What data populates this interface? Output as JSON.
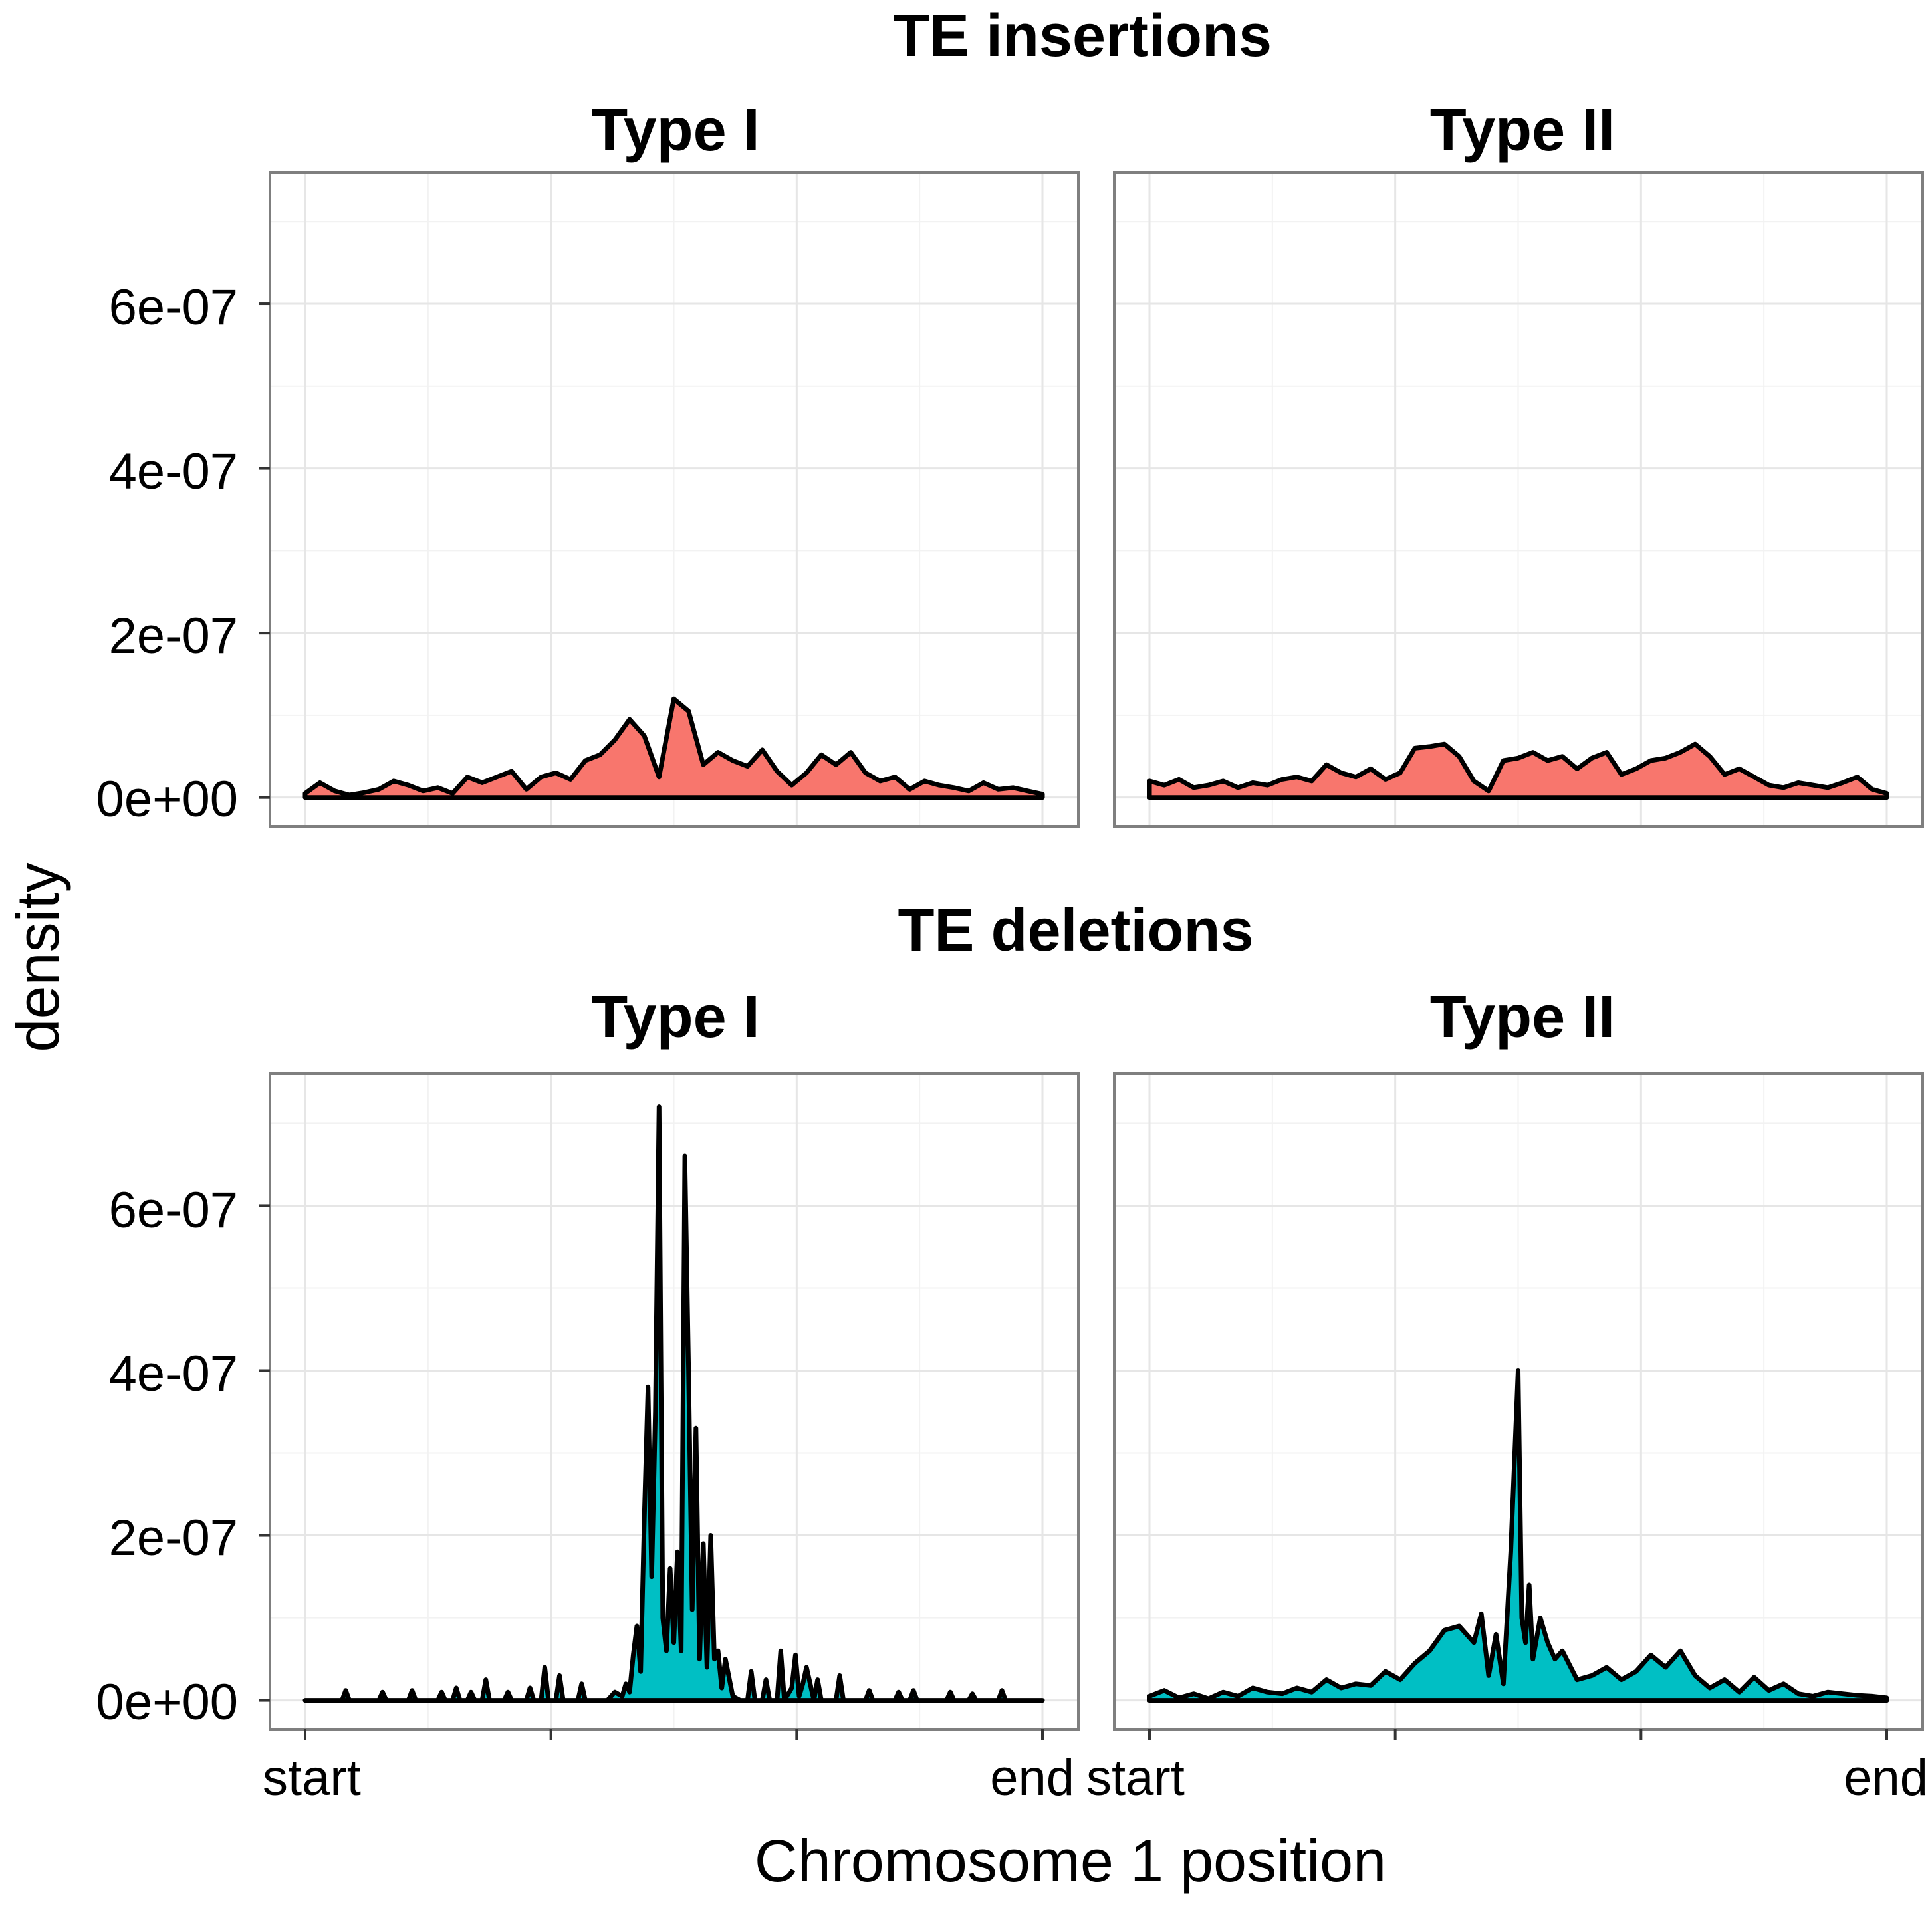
{
  "figure": {
    "ylabel": "density",
    "xlabel": "Chromosome 1 position",
    "y_tick_labels": [
      "0e+00",
      "2e-07",
      "4e-07",
      "6e-07"
    ],
    "x_tick_labels": [
      "start",
      "",
      "",
      "end"
    ]
  },
  "sections": [
    {
      "title": "TE insertions"
    },
    {
      "title": "TE deletions"
    }
  ],
  "colors": {
    "insertions_fill": "#F8766D",
    "deletions_fill": "#00BFC4",
    "line": "#000000",
    "grid": "#E6E6E6",
    "border": "#7F7F7F"
  },
  "chart_data": [
    {
      "type": "area",
      "section": "TE insertions",
      "facet": "Type I",
      "ylim": [
        -3.5e-08,
        7.6e-07
      ],
      "x_range": [
        "start",
        "end"
      ],
      "x": [
        0,
        0.02,
        0.04,
        0.06,
        0.08,
        0.1,
        0.12,
        0.14,
        0.16,
        0.18,
        0.2,
        0.22,
        0.24,
        0.26,
        0.28,
        0.3,
        0.32,
        0.34,
        0.36,
        0.38,
        0.4,
        0.42,
        0.44,
        0.46,
        0.48,
        0.5,
        0.52,
        0.54,
        0.56,
        0.58,
        0.6,
        0.62,
        0.64,
        0.66,
        0.68,
        0.7,
        0.72,
        0.74,
        0.76,
        0.78,
        0.8,
        0.82,
        0.84,
        0.86,
        0.88,
        0.9,
        0.92,
        0.94,
        0.96,
        0.98,
        1.0
      ],
      "y": [
        5e-09,
        1.8e-08,
        8e-09,
        3e-09,
        6e-09,
        1e-08,
        2e-08,
        1.5e-08,
        8e-09,
        1.2e-08,
        5e-09,
        2.5e-08,
        1.8e-08,
        2.5e-08,
        3.2e-08,
        1e-08,
        2.5e-08,
        3e-08,
        2.2e-08,
        4.5e-08,
        5.2e-08,
        7e-08,
        9.5e-08,
        7.5e-08,
        2.5e-08,
        1.2e-07,
        1.05e-07,
        4e-08,
        5.5e-08,
        4.5e-08,
        3.8e-08,
        5.8e-08,
        3.2e-08,
        1.5e-08,
        3e-08,
        5.2e-08,
        4e-08,
        5.5e-08,
        3e-08,
        2e-08,
        2.5e-08,
        1e-08,
        2e-08,
        1.5e-08,
        1.2e-08,
        8e-09,
        1.8e-08,
        1e-08,
        1.2e-08,
        8e-09,
        4e-09
      ]
    },
    {
      "type": "area",
      "section": "TE insertions",
      "facet": "Type II",
      "ylim": [
        -3.5e-08,
        7.6e-07
      ],
      "x_range": [
        "start",
        "end"
      ],
      "x": [
        0,
        0.02,
        0.04,
        0.06,
        0.08,
        0.1,
        0.12,
        0.14,
        0.16,
        0.18,
        0.2,
        0.22,
        0.24,
        0.26,
        0.28,
        0.3,
        0.32,
        0.34,
        0.36,
        0.38,
        0.4,
        0.42,
        0.44,
        0.46,
        0.48,
        0.5,
        0.52,
        0.54,
        0.56,
        0.58,
        0.6,
        0.62,
        0.64,
        0.66,
        0.68,
        0.7,
        0.72,
        0.74,
        0.76,
        0.78,
        0.8,
        0.82,
        0.84,
        0.86,
        0.88,
        0.9,
        0.92,
        0.94,
        0.96,
        0.98,
        1.0
      ],
      "y": [
        2e-08,
        1.5e-08,
        2.2e-08,
        1.2e-08,
        1.5e-08,
        2e-08,
        1.2e-08,
        1.8e-08,
        1.5e-08,
        2.2e-08,
        2.5e-08,
        2e-08,
        4e-08,
        3e-08,
        2.5e-08,
        3.5e-08,
        2.2e-08,
        3e-08,
        6e-08,
        6.2e-08,
        6.5e-08,
        5e-08,
        2e-08,
        8e-09,
        4.5e-08,
        4.8e-08,
        5.5e-08,
        4.5e-08,
        5e-08,
        3.5e-08,
        4.8e-08,
        5.5e-08,
        2.8e-08,
        3.5e-08,
        4.5e-08,
        4.8e-08,
        5.5e-08,
        6.5e-08,
        5e-08,
        2.8e-08,
        3.5e-08,
        2.5e-08,
        1.5e-08,
        1.2e-08,
        1.8e-08,
        1.5e-08,
        1.2e-08,
        1.8e-08,
        2.5e-08,
        1e-08,
        5e-09
      ]
    },
    {
      "type": "area",
      "section": "TE deletions",
      "facet": "Type I",
      "ylim": [
        -3.5e-08,
        7.6e-07
      ],
      "x_range": [
        "start",
        "end"
      ],
      "x": [
        0,
        0.05,
        0.055,
        0.06,
        0.1,
        0.105,
        0.11,
        0.14,
        0.145,
        0.15,
        0.18,
        0.185,
        0.19,
        0.2,
        0.205,
        0.21,
        0.22,
        0.225,
        0.23,
        0.24,
        0.245,
        0.25,
        0.27,
        0.275,
        0.28,
        0.3,
        0.305,
        0.31,
        0.32,
        0.325,
        0.33,
        0.34,
        0.345,
        0.35,
        0.37,
        0.375,
        0.38,
        0.41,
        0.42,
        0.43,
        0.435,
        0.44,
        0.445,
        0.45,
        0.455,
        0.46,
        0.465,
        0.47,
        0.475,
        0.48,
        0.485,
        0.49,
        0.495,
        0.5,
        0.505,
        0.51,
        0.515,
        0.52,
        0.525,
        0.53,
        0.535,
        0.54,
        0.545,
        0.55,
        0.555,
        0.56,
        0.565,
        0.57,
        0.58,
        0.59,
        0.6,
        0.605,
        0.61,
        0.62,
        0.625,
        0.63,
        0.64,
        0.645,
        0.65,
        0.66,
        0.665,
        0.67,
        0.675,
        0.68,
        0.69,
        0.695,
        0.7,
        0.72,
        0.725,
        0.73,
        0.76,
        0.765,
        0.77,
        0.8,
        0.805,
        0.81,
        0.82,
        0.825,
        0.83,
        0.87,
        0.875,
        0.88,
        0.9,
        0.905,
        0.91,
        0.94,
        0.945,
        0.95,
        1.0
      ],
      "y": [
        0,
        0,
        1.2e-08,
        0,
        0,
        1e-08,
        0,
        0,
        1.2e-08,
        0,
        0,
        1e-08,
        0,
        0,
        1.5e-08,
        0,
        0,
        1e-08,
        0,
        0,
        2.5e-08,
        0,
        0,
        1e-08,
        0,
        0,
        1.5e-08,
        0,
        0,
        4e-08,
        0,
        0,
        3e-08,
        0,
        0,
        2e-08,
        0,
        0,
        1e-08,
        5e-09,
        2e-08,
        1e-08,
        5.5e-08,
        9e-08,
        3.5e-08,
        2.2e-07,
        3.8e-07,
        1.5e-07,
        3.5e-07,
        7.2e-07,
        1e-07,
        6e-08,
        1.6e-07,
        7e-08,
        1.8e-07,
        6e-08,
        6.6e-07,
        4e-07,
        1.1e-07,
        3.3e-07,
        5e-08,
        1.9e-07,
        4e-08,
        2e-07,
        5e-08,
        6e-08,
        1.5e-08,
        5e-08,
        5e-09,
        0,
        0,
        3.5e-08,
        0,
        0,
        2.5e-08,
        0,
        0,
        6e-08,
        0,
        1.5e-08,
        5.5e-08,
        5e-09,
        2e-08,
        4e-08,
        0,
        2.5e-08,
        0,
        0,
        3e-08,
        0,
        0,
        1.2e-08,
        0,
        0,
        1e-08,
        0,
        0,
        1.2e-08,
        0,
        0,
        1e-08,
        0,
        0,
        8e-09,
        0,
        0,
        1.2e-08,
        0,
        0
      ]
    },
    {
      "type": "area",
      "section": "TE deletions",
      "facet": "Type II",
      "ylim": [
        -3.5e-08,
        7.6e-07
      ],
      "x_range": [
        "start",
        "end"
      ],
      "x": [
        0,
        0.02,
        0.04,
        0.06,
        0.08,
        0.1,
        0.12,
        0.14,
        0.16,
        0.18,
        0.2,
        0.22,
        0.24,
        0.26,
        0.28,
        0.3,
        0.32,
        0.34,
        0.36,
        0.38,
        0.4,
        0.42,
        0.44,
        0.45,
        0.46,
        0.47,
        0.48,
        0.49,
        0.5,
        0.505,
        0.51,
        0.515,
        0.52,
        0.53,
        0.54,
        0.55,
        0.56,
        0.58,
        0.6,
        0.62,
        0.64,
        0.66,
        0.68,
        0.7,
        0.72,
        0.74,
        0.76,
        0.78,
        0.8,
        0.82,
        0.84,
        0.86,
        0.88,
        0.9,
        0.92,
        0.94,
        0.96,
        0.98,
        1.0
      ],
      "y": [
        5e-09,
        1.2e-08,
        3e-09,
        8e-09,
        2e-09,
        1e-08,
        5e-09,
        1.5e-08,
        1e-08,
        8e-09,
        1.5e-08,
        1e-08,
        2.5e-08,
        1.5e-08,
        2e-08,
        1.8e-08,
        3.5e-08,
        2.5e-08,
        4.5e-08,
        6e-08,
        8.5e-08,
        9e-08,
        7e-08,
        1.05e-07,
        3e-08,
        8e-08,
        2e-08,
        1.8e-07,
        4e-07,
        1e-07,
        7e-08,
        1.4e-07,
        5e-08,
        1e-07,
        7e-08,
        5e-08,
        6e-08,
        2.5e-08,
        3e-08,
        4e-08,
        2.5e-08,
        3.5e-08,
        5.5e-08,
        4e-08,
        6e-08,
        3e-08,
        1.5e-08,
        2.5e-08,
        1e-08,
        2.8e-08,
        1.2e-08,
        2e-08,
        8e-09,
        5e-09,
        1e-08,
        8e-09,
        6e-09,
        5e-09,
        3e-09
      ]
    }
  ]
}
